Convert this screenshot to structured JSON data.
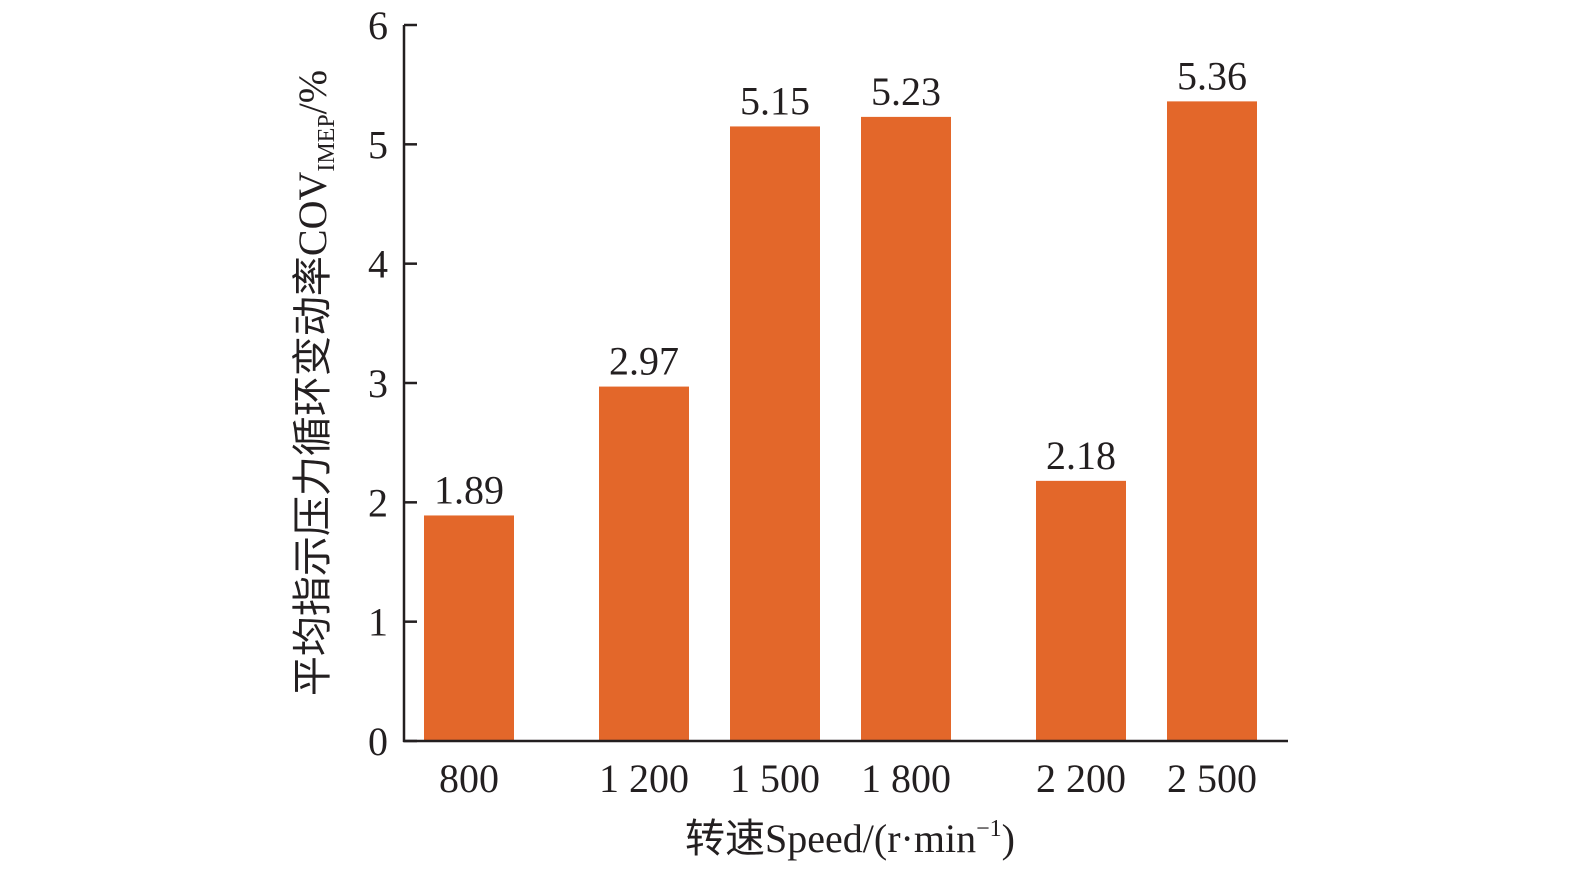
{
  "chart_data": {
    "type": "bar",
    "categories": [
      "800",
      "1 200",
      "1 500",
      "1 800",
      "2 200",
      "2 500"
    ],
    "values": [
      1.89,
      2.97,
      5.15,
      5.23,
      2.18,
      5.36
    ],
    "data_labels": [
      "1.89",
      "2.97",
      "5.15",
      "5.23",
      "2.18",
      "5.36"
    ],
    "y_ticks": [
      "0",
      "1",
      "2",
      "3",
      "4",
      "5",
      "6"
    ],
    "ylim": [
      0,
      6
    ],
    "grid": false,
    "bar_color": "#e3672a",
    "xlabel": {
      "prefix": "转速Speed/(r·min",
      "superscript": "−1",
      "suffix": ")"
    },
    "ylabel": {
      "prefix": "平均指示压力循环变动率COV",
      "subscript": "IMEP",
      "suffix": "/%"
    }
  }
}
